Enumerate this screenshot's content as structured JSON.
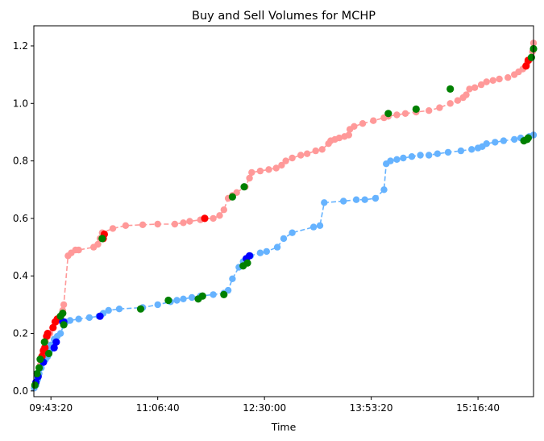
{
  "chart_data": {
    "type": "line",
    "title": "Buy and Sell Volumes for MCHP",
    "xlabel": "Time",
    "ylabel": "",
    "x_unit": "seconds since midnight",
    "xlim": [
      34200,
      57600
    ],
    "ylim": [
      -0.02,
      1.27
    ],
    "x_ticks": [
      {
        "value": 35000,
        "label": "09:43:20"
      },
      {
        "value": 40000,
        "label": "11:06:40"
      },
      {
        "value": 45000,
        "label": "12:30:00"
      },
      {
        "value": 50000,
        "label": "13:53:20"
      },
      {
        "value": 55000,
        "label": "15:16:40"
      }
    ],
    "y_ticks": [
      {
        "value": 0.0,
        "label": "0.0"
      },
      {
        "value": 0.2,
        "label": "0.2"
      },
      {
        "value": 0.4,
        "label": "0.4"
      },
      {
        "value": 0.6,
        "label": "0.6"
      },
      {
        "value": 0.8,
        "label": "0.8"
      },
      {
        "value": 1.0,
        "label": "1.0"
      },
      {
        "value": 1.2,
        "label": "1.2"
      }
    ],
    "grid": false,
    "legend": "none",
    "series": [
      {
        "key": "upper",
        "line_color": "#ff9999",
        "marker_color": "#ff9999",
        "line_style": "dashed",
        "points": [
          [
            34220,
            0.01
          ],
          [
            34300,
            0.03
          ],
          [
            34400,
            0.06
          ],
          [
            34500,
            0.09
          ],
          [
            34550,
            0.11
          ],
          [
            34620,
            0.13
          ],
          [
            34680,
            0.15
          ],
          [
            34750,
            0.17
          ],
          [
            34850,
            0.19
          ],
          [
            34950,
            0.2
          ],
          [
            35100,
            0.22
          ],
          [
            35250,
            0.24
          ],
          [
            35350,
            0.25
          ],
          [
            35450,
            0.26
          ],
          [
            35550,
            0.28
          ],
          [
            35600,
            0.3
          ],
          [
            35800,
            0.47
          ],
          [
            35950,
            0.48
          ],
          [
            36150,
            0.49
          ],
          [
            36300,
            0.49
          ],
          [
            37000,
            0.5
          ],
          [
            37200,
            0.51
          ],
          [
            37300,
            0.53
          ],
          [
            37400,
            0.55
          ],
          [
            37900,
            0.565
          ],
          [
            38500,
            0.575
          ],
          [
            39300,
            0.578
          ],
          [
            40000,
            0.58
          ],
          [
            40800,
            0.58
          ],
          [
            41200,
            0.585
          ],
          [
            41500,
            0.59
          ],
          [
            42000,
            0.595
          ],
          [
            42200,
            0.6
          ],
          [
            42600,
            0.6
          ],
          [
            42900,
            0.61
          ],
          [
            43100,
            0.63
          ],
          [
            43300,
            0.67
          ],
          [
            43500,
            0.68
          ],
          [
            43700,
            0.69
          ],
          [
            44100,
            0.71
          ],
          [
            44300,
            0.74
          ],
          [
            44400,
            0.76
          ],
          [
            44800,
            0.765
          ],
          [
            45200,
            0.77
          ],
          [
            45550,
            0.775
          ],
          [
            45800,
            0.785
          ],
          [
            46000,
            0.8
          ],
          [
            46300,
            0.81
          ],
          [
            46700,
            0.82
          ],
          [
            47000,
            0.825
          ],
          [
            47400,
            0.835
          ],
          [
            47700,
            0.84
          ],
          [
            48000,
            0.86
          ],
          [
            48100,
            0.87
          ],
          [
            48300,
            0.875
          ],
          [
            48500,
            0.88
          ],
          [
            48750,
            0.885
          ],
          [
            48950,
            0.89
          ],
          [
            49000,
            0.91
          ],
          [
            49200,
            0.92
          ],
          [
            49600,
            0.93
          ],
          [
            50100,
            0.94
          ],
          [
            50600,
            0.95
          ],
          [
            50800,
            0.955
          ],
          [
            51200,
            0.96
          ],
          [
            51600,
            0.965
          ],
          [
            52100,
            0.97
          ],
          [
            52700,
            0.975
          ],
          [
            53200,
            0.985
          ],
          [
            53700,
            1.0
          ],
          [
            54050,
            1.01
          ],
          [
            54300,
            1.02
          ],
          [
            54450,
            1.03
          ],
          [
            54600,
            1.05
          ],
          [
            54850,
            1.055
          ],
          [
            55150,
            1.065
          ],
          [
            55400,
            1.075
          ],
          [
            55700,
            1.08
          ],
          [
            56000,
            1.085
          ],
          [
            56400,
            1.09
          ],
          [
            56700,
            1.1
          ],
          [
            56900,
            1.11
          ],
          [
            57100,
            1.12
          ],
          [
            57250,
            1.13
          ],
          [
            57300,
            1.14
          ],
          [
            57400,
            1.15
          ],
          [
            57550,
            1.18
          ],
          [
            57600,
            1.21
          ]
        ]
      },
      {
        "key": "lower",
        "line_color": "#66b3ff",
        "marker_color": "#66b3ff",
        "line_style": "dashed",
        "points": [
          [
            34220,
            0.01
          ],
          [
            34300,
            0.02
          ],
          [
            34380,
            0.04
          ],
          [
            34450,
            0.06
          ],
          [
            34550,
            0.08
          ],
          [
            34650,
            0.1
          ],
          [
            34750,
            0.11
          ],
          [
            34850,
            0.12
          ],
          [
            34950,
            0.14
          ],
          [
            35000,
            0.16
          ],
          [
            35150,
            0.18
          ],
          [
            35300,
            0.19
          ],
          [
            35450,
            0.2
          ],
          [
            35600,
            0.23
          ],
          [
            35700,
            0.24
          ],
          [
            35900,
            0.245
          ],
          [
            36300,
            0.25
          ],
          [
            36800,
            0.255
          ],
          [
            37250,
            0.26
          ],
          [
            37450,
            0.27
          ],
          [
            37700,
            0.28
          ],
          [
            38200,
            0.285
          ],
          [
            39300,
            0.29
          ],
          [
            40000,
            0.3
          ],
          [
            40600,
            0.31
          ],
          [
            40900,
            0.315
          ],
          [
            41200,
            0.32
          ],
          [
            41600,
            0.325
          ],
          [
            42000,
            0.33
          ],
          [
            42600,
            0.335
          ],
          [
            43100,
            0.34
          ],
          [
            43300,
            0.35
          ],
          [
            43500,
            0.39
          ],
          [
            43800,
            0.43
          ],
          [
            44000,
            0.45
          ],
          [
            44150,
            0.46
          ],
          [
            44350,
            0.47
          ],
          [
            44800,
            0.48
          ],
          [
            45100,
            0.485
          ],
          [
            45600,
            0.5
          ],
          [
            45900,
            0.53
          ],
          [
            46300,
            0.55
          ],
          [
            47300,
            0.57
          ],
          [
            47600,
            0.575
          ],
          [
            47800,
            0.655
          ],
          [
            48700,
            0.66
          ],
          [
            49300,
            0.665
          ],
          [
            49700,
            0.665
          ],
          [
            50200,
            0.67
          ],
          [
            50600,
            0.7
          ],
          [
            50700,
            0.79
          ],
          [
            50900,
            0.8
          ],
          [
            51200,
            0.805
          ],
          [
            51500,
            0.81
          ],
          [
            51900,
            0.815
          ],
          [
            52300,
            0.82
          ],
          [
            52700,
            0.82
          ],
          [
            53100,
            0.825
          ],
          [
            53600,
            0.83
          ],
          [
            54200,
            0.835
          ],
          [
            54700,
            0.84
          ],
          [
            55000,
            0.845
          ],
          [
            55200,
            0.85
          ],
          [
            55400,
            0.86
          ],
          [
            55800,
            0.865
          ],
          [
            56200,
            0.87
          ],
          [
            56700,
            0.875
          ],
          [
            57000,
            0.88
          ],
          [
            57400,
            0.885
          ],
          [
            57600,
            0.89
          ]
        ]
      }
    ],
    "highlights": [
      {
        "key": "red",
        "color": "#ff0000",
        "points": [
          [
            34580,
            0.12
          ],
          [
            34650,
            0.14
          ],
          [
            34720,
            0.15
          ],
          [
            34800,
            0.19
          ],
          [
            34850,
            0.2
          ],
          [
            35100,
            0.22
          ],
          [
            35200,
            0.24
          ],
          [
            35300,
            0.25
          ],
          [
            35450,
            0.26
          ],
          [
            37450,
            0.53
          ],
          [
            37500,
            0.545
          ],
          [
            42200,
            0.6
          ],
          [
            57250,
            1.13
          ],
          [
            57350,
            1.15
          ]
        ]
      },
      {
        "key": "blue",
        "color": "#0000ff",
        "points": [
          [
            34300,
            0.03
          ],
          [
            34400,
            0.05
          ],
          [
            34650,
            0.1
          ],
          [
            35150,
            0.15
          ],
          [
            35250,
            0.17
          ],
          [
            35550,
            0.24
          ],
          [
            35600,
            0.24
          ],
          [
            37300,
            0.26
          ],
          [
            44150,
            0.46
          ],
          [
            44300,
            0.47
          ]
        ]
      },
      {
        "key": "green",
        "color": "#008000",
        "points": [
          [
            34250,
            0.02
          ],
          [
            34350,
            0.06
          ],
          [
            34450,
            0.08
          ],
          [
            34500,
            0.11
          ],
          [
            34700,
            0.17
          ],
          [
            34900,
            0.13
          ],
          [
            35450,
            0.26
          ],
          [
            35550,
            0.27
          ],
          [
            35600,
            0.23
          ],
          [
            37400,
            0.53
          ],
          [
            39200,
            0.285
          ],
          [
            40500,
            0.315
          ],
          [
            41900,
            0.32
          ],
          [
            42100,
            0.33
          ],
          [
            43100,
            0.335
          ],
          [
            43500,
            0.675
          ],
          [
            44050,
            0.71
          ],
          [
            44000,
            0.435
          ],
          [
            44200,
            0.445
          ],
          [
            50800,
            0.965
          ],
          [
            52100,
            0.98
          ],
          [
            53700,
            1.05
          ],
          [
            57150,
            0.87
          ],
          [
            57300,
            0.875
          ],
          [
            57350,
            0.88
          ],
          [
            57500,
            1.16
          ],
          [
            57600,
            1.19
          ]
        ]
      }
    ]
  }
}
